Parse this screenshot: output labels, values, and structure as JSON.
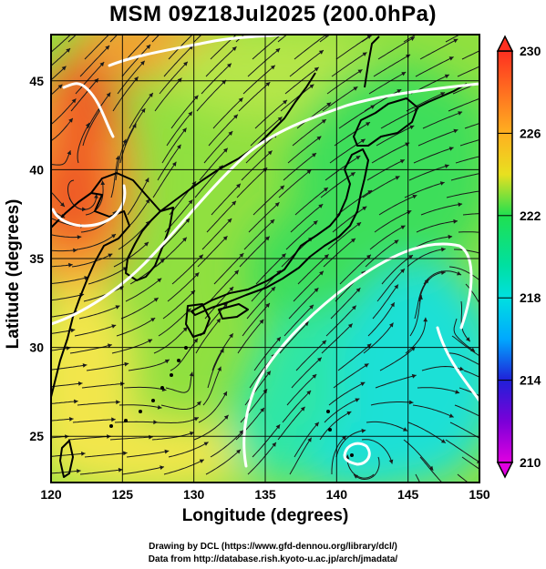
{
  "title": "MSM 09Z18Jul2025 (200.0hPa)",
  "xlabel": "Longitude (degrees)",
  "ylabel": "Latitude  (degrees)",
  "credits": [
    "Drawing by DCL (https://www.gfd-dennou.org/library/dcl/)",
    "Data from http://database.rish.kyoto-u.ac.jp/arch/jmadata/"
  ],
  "map": {
    "type": "streamline-temperature-map",
    "lon_range": [
      120,
      150
    ],
    "lat_range": [
      22.4,
      47.6
    ],
    "x_ticks": [
      "120",
      "125",
      "130",
      "135",
      "140",
      "145",
      "150"
    ],
    "y_ticks": [
      "25",
      "30",
      "35",
      "40",
      "45"
    ],
    "grid": true
  },
  "colorbar": {
    "range": [
      210,
      230
    ],
    "tick_labels": [
      "230",
      "226",
      "222",
      "218",
      "214",
      "210"
    ],
    "colors": [
      "#e000e0",
      "#7a00d8",
      "#2020d8",
      "#0060ff",
      "#00a8ff",
      "#00e0e0",
      "#00e0a0",
      "#20e050",
      "#90e040",
      "#e8e020",
      "#ffb020",
      "#ff7020",
      "#ff3020"
    ]
  },
  "field_colors": {
    "hot": "#ef5a28",
    "orange": "#f5a030",
    "yellow": "#f2e64c",
    "light_green": "#b6e64a",
    "green": "#3cde5a",
    "aqua_green": "#2ee6a6",
    "cyan": "#1ee0d6"
  }
}
